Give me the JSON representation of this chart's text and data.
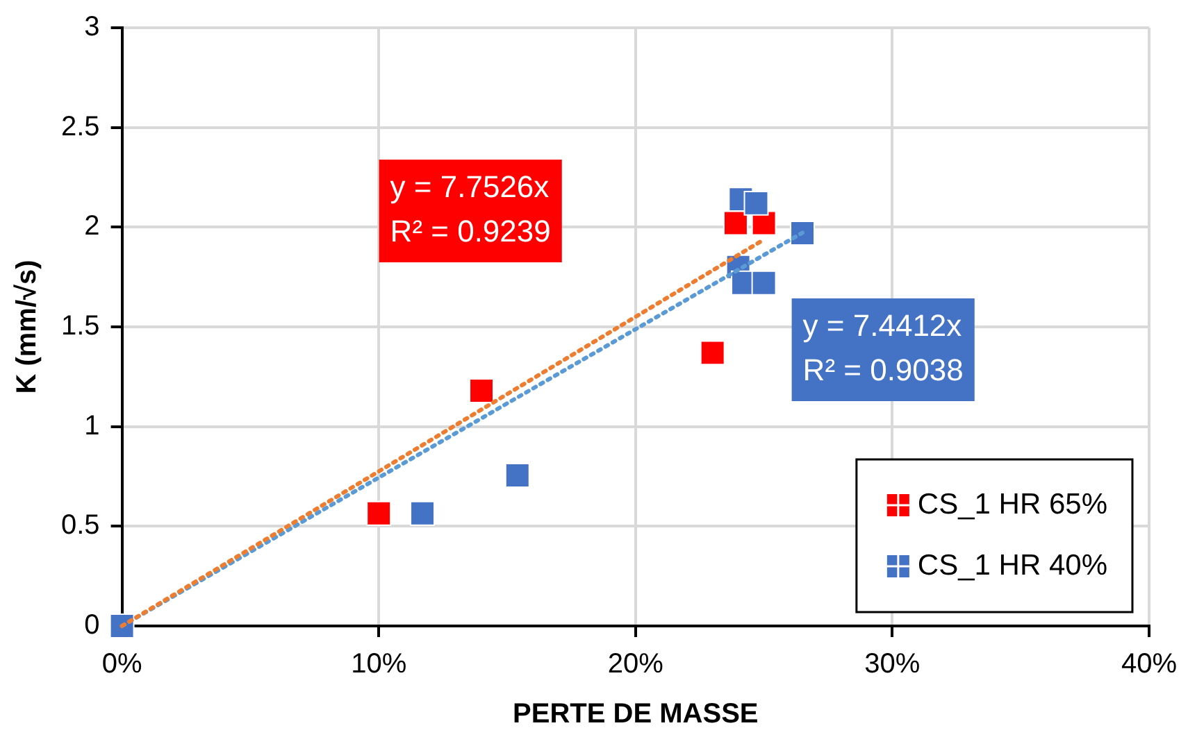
{
  "chart_data": {
    "type": "scatter",
    "xlabel": "PERTE DE MASSE",
    "ylabel": "K (mm/√s)",
    "xlim": [
      0,
      0.4
    ],
    "xticks": [
      {
        "value": 0,
        "label": "0%"
      },
      {
        "value": 0.1,
        "label": "10%"
      },
      {
        "value": 0.2,
        "label": "20%"
      },
      {
        "value": 0.3,
        "label": "30%"
      },
      {
        "value": 0.4,
        "label": "40%"
      }
    ],
    "ylim": [
      0,
      3
    ],
    "yticks": [
      0,
      0.5,
      1,
      1.5,
      2,
      2.5,
      3
    ],
    "grid": true,
    "legend": "bottom right",
    "marker": "square",
    "series": [
      {
        "name": "CS_1 HR 65%",
        "color": "#ff0000",
        "x": [
          0.1,
          0.14,
          0.23,
          0.239,
          0.25
        ],
        "values": [
          0.565,
          1.18,
          1.37,
          2.02,
          2.02
        ]
      },
      {
        "name": "CS_1 HR 40%",
        "color": "#4472c4",
        "x": [
          0,
          0.117,
          0.154,
          0.241,
          0.247,
          0.265,
          0.24,
          0.242,
          0.25
        ],
        "values": [
          0,
          0.565,
          0.755,
          2.14,
          2.12,
          1.97,
          1.8,
          1.72,
          1.72
        ]
      },
      {
        "type": "line",
        "color": "#ed7d31",
        "line_style": "dotted",
        "marker": "none",
        "x": [
          0,
          0.25
        ],
        "values": [
          0,
          1.938
        ]
      },
      {
        "type": "line",
        "color": "#5b9bd5",
        "line_style": "dotted",
        "marker": "none",
        "x": [
          0,
          0.265
        ],
        "values": [
          0,
          1.972
        ]
      }
    ],
    "annotations": [
      "y = 7.7526x\nR² = 0.9239",
      "y = 7.4412x\nR² = 0.9038"
    ]
  }
}
